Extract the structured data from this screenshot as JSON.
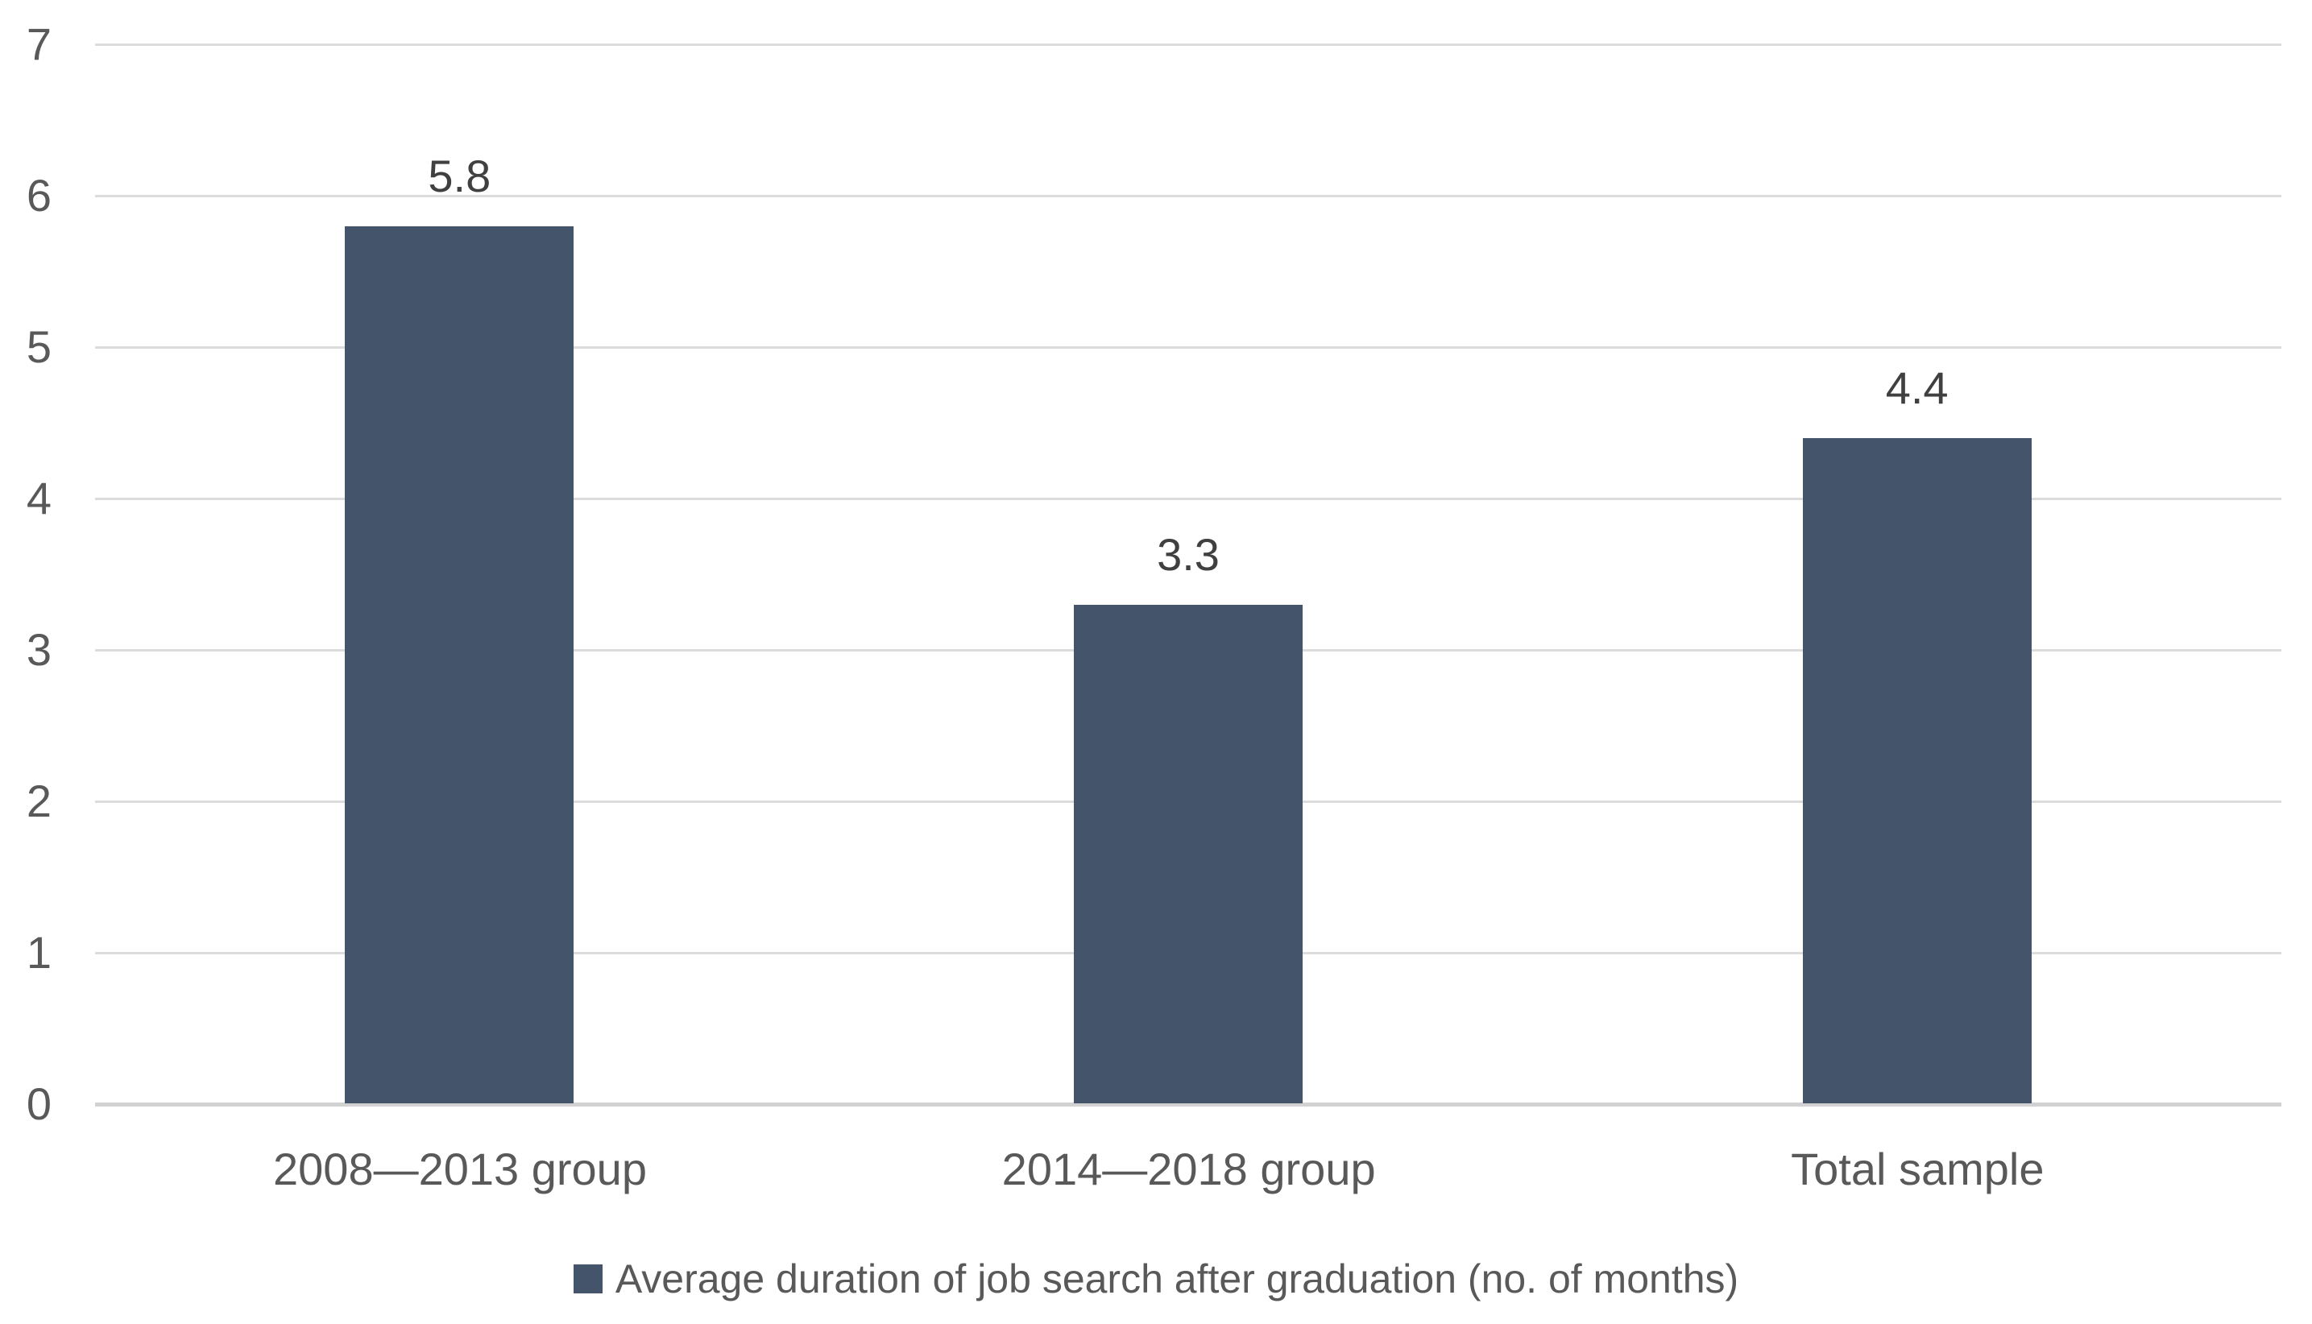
{
  "chart_data": {
    "type": "bar",
    "title": "",
    "categories": [
      "2008—2013 group",
      "2014—2018 group",
      "Total sample"
    ],
    "series": [
      {
        "name": "Average duration of job search after graduation (no. of months)",
        "values": [
          5.8,
          3.3,
          4.4
        ]
      }
    ],
    "data_labels": [
      "5.8",
      "3.3",
      "4.4"
    ],
    "xlabel": "",
    "ylabel": "",
    "ylim": [
      0,
      7
    ],
    "yticks": [
      0,
      1,
      2,
      3,
      4,
      5,
      6,
      7
    ],
    "grid": "horizontal",
    "legend_position": "bottom",
    "legend_label": "Average duration of job search after graduation (no. of months)",
    "colors": {
      "bar": "#44546A",
      "gridline": "#DCDCDC",
      "axis_line": "#D2D2D2",
      "tick_label": "#595959",
      "category_label": "#595959",
      "data_label": "#404040",
      "legend_text": "#595959",
      "background": "#FFFFFF"
    }
  }
}
